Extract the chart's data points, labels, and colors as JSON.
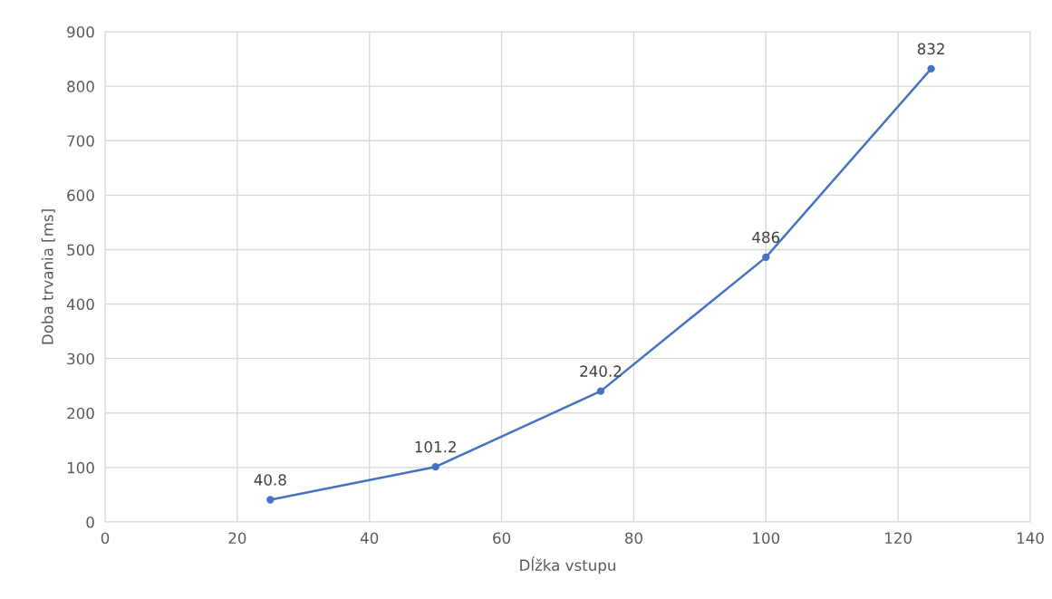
{
  "chart_data": {
    "type": "line",
    "xlabel": "Dĺžka vstupu",
    "ylabel": "Doba trvania [ms]",
    "x": [
      25,
      50,
      75,
      100,
      125
    ],
    "series": [
      {
        "color": "#4472c4",
        "values": [
          40.8,
          101.2,
          240.2,
          486,
          832
        ]
      }
    ],
    "xlim": [
      0,
      140
    ],
    "xticks": [
      0,
      20,
      40,
      60,
      80,
      100,
      120,
      140
    ],
    "ylim": [
      0,
      900
    ],
    "yticks": [
      0,
      100,
      200,
      300,
      400,
      500,
      600,
      700,
      800,
      900
    ],
    "grid": true,
    "marker": "circle",
    "line_style": "solid",
    "data_labels": true
  }
}
